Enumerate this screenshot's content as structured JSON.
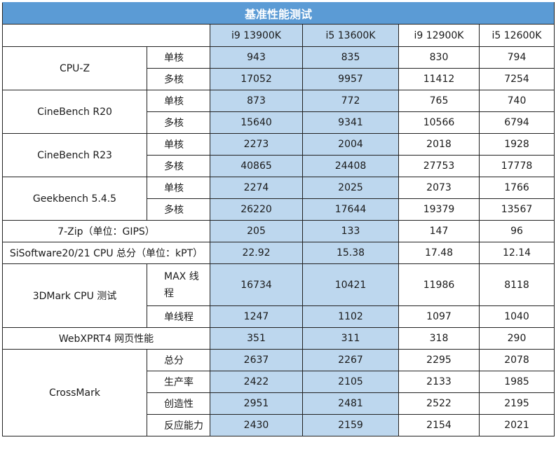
{
  "title": "基准性能测试",
  "columns": [
    "i9 13900K",
    "i5 13600K",
    "i9 12900K",
    "i5 12600K"
  ],
  "benchmarks": [
    {
      "name": "CPU-Z",
      "rows": [
        {
          "label": "单核",
          "values": [
            "943",
            "835",
            "830",
            "794"
          ]
        },
        {
          "label": "多核",
          "values": [
            "17052",
            "9957",
            "11412",
            "7254"
          ]
        }
      ]
    },
    {
      "name": "CineBench R20",
      "rows": [
        {
          "label": "单核",
          "values": [
            "873",
            "772",
            "765",
            "740"
          ]
        },
        {
          "label": "多核",
          "values": [
            "15640",
            "9341",
            "10566",
            "6794"
          ]
        }
      ]
    },
    {
      "name": "CineBench R23",
      "rows": [
        {
          "label": "单核",
          "values": [
            "2273",
            "2004",
            "2018",
            "1928"
          ]
        },
        {
          "label": "多核",
          "values": [
            "40865",
            "24408",
            "27753",
            "17778"
          ]
        }
      ]
    },
    {
      "name": "Geekbench 5.4.5",
      "rows": [
        {
          "label": "单核",
          "values": [
            "2274",
            "2025",
            "2073",
            "1766"
          ]
        },
        {
          "label": "多核",
          "values": [
            "26220",
            "17644",
            "19379",
            "13567"
          ]
        }
      ]
    },
    {
      "name": "7-Zip（单位：GIPS）",
      "values": [
        "205",
        "133",
        "147",
        "96"
      ]
    },
    {
      "name": "SiSoftware20/21 CPU 总分（单位：kPT）",
      "values": [
        "22.92",
        "15.38",
        "17.48",
        "12.14"
      ]
    },
    {
      "name": "3DMark CPU 测试",
      "rows": [
        {
          "label": "MAX 线程",
          "values": [
            "16734",
            "10421",
            "11986",
            "8118"
          ]
        },
        {
          "label": "单线程",
          "values": [
            "1247",
            "1102",
            "1097",
            "1040"
          ]
        }
      ]
    },
    {
      "name": "WebXPRT4 网页性能",
      "values": [
        "351",
        "311",
        "318",
        "290"
      ]
    },
    {
      "name": "CrossMark",
      "rows": [
        {
          "label": "总分",
          "values": [
            "2637",
            "2267",
            "2295",
            "2078"
          ]
        },
        {
          "label": "生产率",
          "values": [
            "2422",
            "2105",
            "2133",
            "1985"
          ]
        },
        {
          "label": "创造性",
          "values": [
            "2951",
            "2481",
            "2522",
            "2195"
          ]
        },
        {
          "label": "反应能力",
          "values": [
            "2430",
            "2159",
            "2154",
            "2021"
          ]
        }
      ]
    }
  ],
  "colors": {
    "header_bg": "#5b9bd5",
    "highlight_bg": "#bdd7ee"
  }
}
